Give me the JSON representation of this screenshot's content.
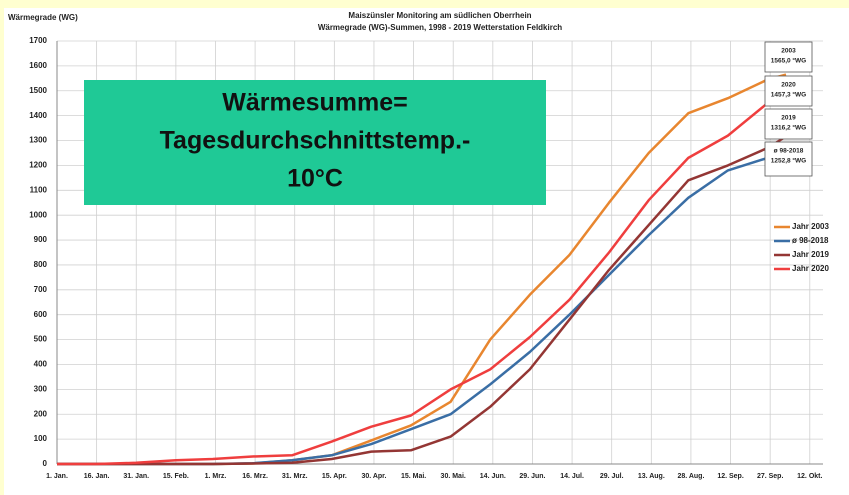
{
  "chart_data": {
    "type": "line",
    "title": [
      "Maiszünsler Monitoring am südlichen Oberrhein",
      "Wärmegrade (WG)-Summen, 1998 - 2019 Wetterstation Feldkirch"
    ],
    "y_label": "Wärmegrade (WG)",
    "box_text": [
      "Wärmesumme=",
      "Tagesdurchschnittstemp.-",
      "10°C"
    ],
    "box_color": "#1fc996",
    "annotations": [
      {
        "title": "2003",
        "text": "1565,0 °WG"
      },
      {
        "title": "2020",
        "text": "1457,3 °WG"
      },
      {
        "title": "2019",
        "text": "1316,2 °WG"
      },
      {
        "title": "ø 98-2018",
        "text": "1252,8 °WG"
      }
    ],
    "x": [
      1,
      16,
      31,
      46,
      60,
      75,
      90,
      105,
      120,
      135,
      150,
      165,
      180,
      195,
      210,
      225,
      240,
      255,
      270,
      277
    ],
    "series": [
      {
        "name": "Jahr 2003",
        "color": "#e8862f",
        "values": [
          0,
          0,
          0,
          0,
          0,
          2,
          15,
          35,
          95,
          155,
          250,
          500,
          680,
          840,
          1050,
          1250,
          1410,
          1470,
          1545,
          1565
        ]
      },
      {
        "name": "ø 98-2018",
        "color": "#3a6ea5",
        "values": [
          0,
          0,
          0,
          0,
          0,
          3,
          15,
          35,
          80,
          140,
          200,
          320,
          450,
          600,
          760,
          920,
          1070,
          1180,
          1230,
          1252.8
        ]
      },
      {
        "name": "Jahr 2019",
        "color": "#943634",
        "values": [
          0,
          0,
          0,
          0,
          0,
          2,
          5,
          20,
          50,
          55,
          110,
          230,
          380,
          580,
          780,
          960,
          1140,
          1200,
          1270,
          1316.2
        ]
      },
      {
        "name": "Jahr 2020",
        "color": "#ef3e3e",
        "values": [
          0,
          0,
          5,
          15,
          20,
          30,
          35,
          90,
          150,
          195,
          300,
          380,
          510,
          660,
          850,
          1060,
          1230,
          1320,
          1450,
          1457.3
        ]
      }
    ],
    "xlim": [
      1,
      291
    ],
    "xticks": [
      {
        "value": 1,
        "label": "1. Jan."
      },
      {
        "value": 16,
        "label": "16. Jan."
      },
      {
        "value": 31,
        "label": "31. Jan."
      },
      {
        "value": 46,
        "label": "15. Feb."
      },
      {
        "value": 61,
        "label": "1. Mrz."
      },
      {
        "value": 76,
        "label": "16. Mrz."
      },
      {
        "value": 91,
        "label": "31. Mrz."
      },
      {
        "value": 106,
        "label": "15. Apr."
      },
      {
        "value": 121,
        "label": "30. Apr."
      },
      {
        "value": 136,
        "label": "15. Mai."
      },
      {
        "value": 151,
        "label": "30. Mai."
      },
      {
        "value": 166,
        "label": "14. Jun."
      },
      {
        "value": 181,
        "label": "29. Jun."
      },
      {
        "value": 196,
        "label": "14. Jul."
      },
      {
        "value": 211,
        "label": "29. Jul."
      },
      {
        "value": 226,
        "label": "13. Aug."
      },
      {
        "value": 241,
        "label": "28. Aug."
      },
      {
        "value": 256,
        "label": "12. Sep."
      },
      {
        "value": 271,
        "label": "27. Sep."
      },
      {
        "value": 286,
        "label": "12. Okt."
      }
    ],
    "ylim": [
      0,
      1700
    ],
    "yticks": [
      0,
      100,
      200,
      300,
      400,
      500,
      600,
      700,
      800,
      900,
      1000,
      1100,
      1200,
      1300,
      1400,
      1500,
      1600,
      1700
    ],
    "grid": true
  }
}
